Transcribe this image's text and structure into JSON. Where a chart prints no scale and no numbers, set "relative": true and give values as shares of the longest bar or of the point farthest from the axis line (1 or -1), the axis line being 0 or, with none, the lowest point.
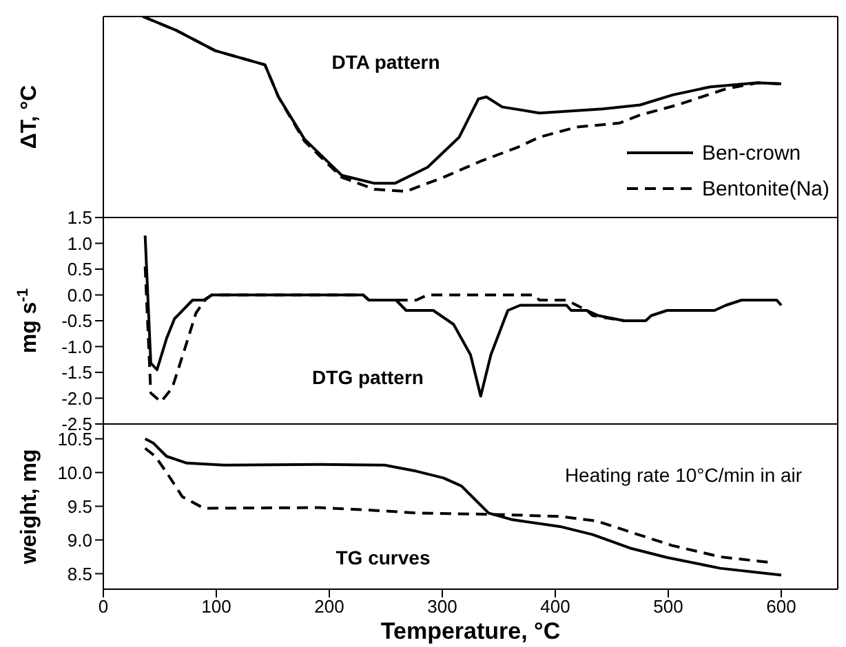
{
  "chart_data": [
    {
      "type": "line",
      "relative": true,
      "ylabel": "ΔT, °C",
      "annotations": [
        "DTA pattern"
      ],
      "xlim": [
        0,
        650
      ],
      "tick_labels": false,
      "legend": "bottom right",
      "series": [
        {
          "name": "Ben-crown",
          "color": "#000000",
          "line_style": "solid",
          "x": [
            35,
            65,
            99,
            143,
            155,
            178,
            211,
            240,
            258,
            287,
            315,
            332,
            339,
            353,
            386,
            442,
            475,
            504,
            537,
            579,
            600
          ],
          "values": [
            1.0,
            0.93,
            0.83,
            0.76,
            0.6,
            0.39,
            0.21,
            0.17,
            0.17,
            0.25,
            0.4,
            0.59,
            0.6,
            0.55,
            0.52,
            0.54,
            0.56,
            0.61,
            0.65,
            0.67,
            0.665
          ]
        },
        {
          "name": "Bentonite(Na)",
          "color": "#000000",
          "line_style": "dashed",
          "x": [
            35,
            65,
            99,
            143,
            155,
            178,
            211,
            240,
            268,
            301,
            334,
            367,
            386,
            419,
            457,
            475,
            508,
            551,
            579,
            598
          ],
          "values": [
            1.0,
            0.93,
            0.83,
            0.76,
            0.6,
            0.38,
            0.2,
            0.14,
            0.13,
            0.2,
            0.28,
            0.35,
            0.4,
            0.45,
            0.47,
            0.51,
            0.56,
            0.64,
            0.67,
            0.665
          ]
        }
      ]
    },
    {
      "type": "line",
      "ylabel": "mg s$^{-1}$",
      "annotations": [
        "DTG pattern"
      ],
      "xlim": [
        0,
        650
      ],
      "ylim": [
        -2.5,
        1.5
      ],
      "tick_labels": "y",
      "legend": false,
      "yticks": [
        -2.5,
        {
          "value": -2,
          "label": "-2.0"
        },
        -1.5,
        {
          "value": -1,
          "label": "-1.0"
        },
        -0.5,
        {
          "value": 0,
          "label": "0.0"
        },
        0.5,
        {
          "value": 1,
          "label": "1.0"
        },
        1.5
      ],
      "series": [
        {
          "color": "#000000",
          "line_style": "solid",
          "x": [
            37,
            42,
            47.5,
            56,
            63,
            79,
            89,
            96,
            230,
            235,
            259,
            268,
            292,
            310,
            325,
            334,
            343,
            358,
            369,
            410,
            414,
            428,
            438,
            461,
            480,
            485,
            499,
            541,
            551,
            565,
            596,
            600
          ],
          "values": [
            1.15,
            -1.32,
            -1.45,
            -0.84,
            -0.46,
            -0.1,
            -0.1,
            0,
            0,
            -0.1,
            -0.1,
            -0.3,
            -0.3,
            -0.57,
            -1.16,
            -1.96,
            -1.16,
            -0.3,
            -0.2,
            -0.2,
            -0.3,
            -0.3,
            -0.4,
            -0.5,
            -0.5,
            -0.4,
            -0.3,
            -0.3,
            -0.2,
            -0.1,
            -0.1,
            -0.2
          ]
        },
        {
          "color": "#000000",
          "line_style": "dashed",
          "x": [
            37,
            42,
            51,
            61,
            72,
            82,
            90,
            96,
            230,
            235,
            277,
            287,
            381,
            386,
            410,
            428,
            433,
            461
          ],
          "values": [
            0.55,
            -1.9,
            -2.07,
            -1.8,
            -1.05,
            -0.35,
            -0.1,
            0,
            0,
            -0.1,
            -0.1,
            0,
            0,
            -0.1,
            -0.1,
            -0.3,
            -0.4,
            -0.5
          ]
        }
      ]
    },
    {
      "type": "line",
      "xlabel": "Temperature, °C",
      "ylabel": "weight,  mg",
      "annotations": [
        "TG curves",
        "Heating rate 10°C/min in air"
      ],
      "xlim": [
        0,
        650
      ],
      "xticks": [
        0,
        100,
        200,
        300,
        400,
        500,
        600
      ],
      "ylim": [
        8.27,
        10.72
      ],
      "yticks": [
        8.5,
        {
          "value": 9,
          "label": "9.0"
        },
        9.5,
        {
          "value": 10,
          "label": "10.0"
        },
        10.5
      ],
      "legend": false,
      "series": [
        {
          "color": "#000000",
          "line_style": "solid",
          "x": [
            37,
            44,
            56,
            74,
            107,
            192,
            249,
            277,
            301,
            317,
            329,
            341,
            362,
            404,
            433,
            466,
            499,
            546,
            600
          ],
          "values": [
            10.5,
            10.44,
            10.24,
            10.14,
            10.11,
            10.12,
            10.11,
            10.02,
            9.92,
            9.8,
            9.6,
            9.4,
            9.3,
            9.2,
            9.08,
            8.88,
            8.74,
            8.58,
            8.48
          ]
        },
        {
          "color": "#000000",
          "line_style": "dashed",
          "x": [
            37,
            46,
            56,
            70,
            89,
            192,
            239,
            277,
            343,
            404,
            437,
            466,
            503,
            546,
            588
          ],
          "values": [
            10.36,
            10.24,
            10.0,
            9.64,
            9.47,
            9.48,
            9.44,
            9.4,
            9.38,
            9.35,
            9.28,
            9.12,
            8.92,
            8.75,
            8.67
          ]
        }
      ]
    }
  ]
}
